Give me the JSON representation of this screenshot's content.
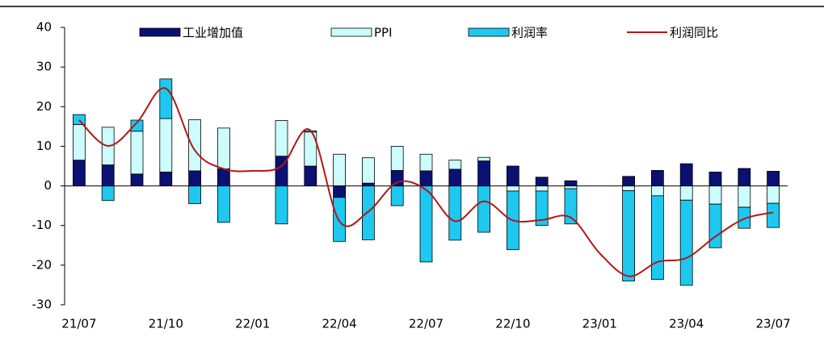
{
  "chart_data": {
    "type": "bar",
    "categories": [
      "21/07",
      null,
      null,
      "21/10",
      null,
      null,
      "22/01",
      null,
      null,
      "22/04",
      null,
      null,
      "22/07",
      null,
      null,
      "22/10",
      null,
      null,
      "23/01",
      null,
      null,
      "23/04",
      null,
      null,
      "23/07"
    ],
    "series": [
      {
        "name": "工业增加值",
        "color": "#0a1172",
        "values": [
          6.5,
          5.3,
          3,
          3.5,
          3.8,
          4.3,
          null,
          7.5,
          5,
          -2.9,
          0.7,
          3.9,
          3.8,
          4.2,
          6.3,
          5,
          2.2,
          1.3,
          null,
          2.4,
          3.9,
          5.6,
          3.5,
          4.4,
          3.7
        ]
      },
      {
        "name": "PPI",
        "color": "#ccfcfc",
        "values": [
          9,
          9.5,
          10.8,
          13.5,
          12.9,
          10.3,
          null,
          9,
          8.6,
          8,
          6.4,
          6.1,
          4.2,
          2.3,
          0.9,
          -1.3,
          -1.3,
          -0.7,
          null,
          -1.2,
          -2.5,
          -3.6,
          -4.6,
          -5.4,
          -4.4
        ]
      },
      {
        "name": "利润率",
        "color": "#1ec8ee",
        "values": [
          2.5,
          -3.7,
          2.8,
          10,
          -4.5,
          -9.2,
          null,
          -9.6,
          0.3,
          -11.1,
          -13.6,
          -5,
          -19.2,
          -13.7,
          -11.7,
          -14.8,
          -8.7,
          -8.9,
          null,
          -22.8,
          -21.1,
          -21.5,
          -11,
          -5.3,
          -6.1
        ]
      },
      {
        "name": "利润同比",
        "color": "#b01818",
        "type": "line",
        "values": [
          16.6,
          10.1,
          16,
          24.6,
          9,
          4.3,
          3.8,
          5,
          14,
          -8.9,
          -6.5,
          0.9,
          -1,
          -8.9,
          -3.9,
          -8.7,
          -8.6,
          -8,
          -17,
          -22.8,
          -19.2,
          -18.2,
          -12.8,
          -8.3,
          -6.7
        ]
      }
    ],
    "ylim": [
      -30,
      40
    ],
    "yticks": [
      -30,
      -20,
      -10,
      0,
      10,
      20,
      30,
      40
    ],
    "grid": false
  }
}
